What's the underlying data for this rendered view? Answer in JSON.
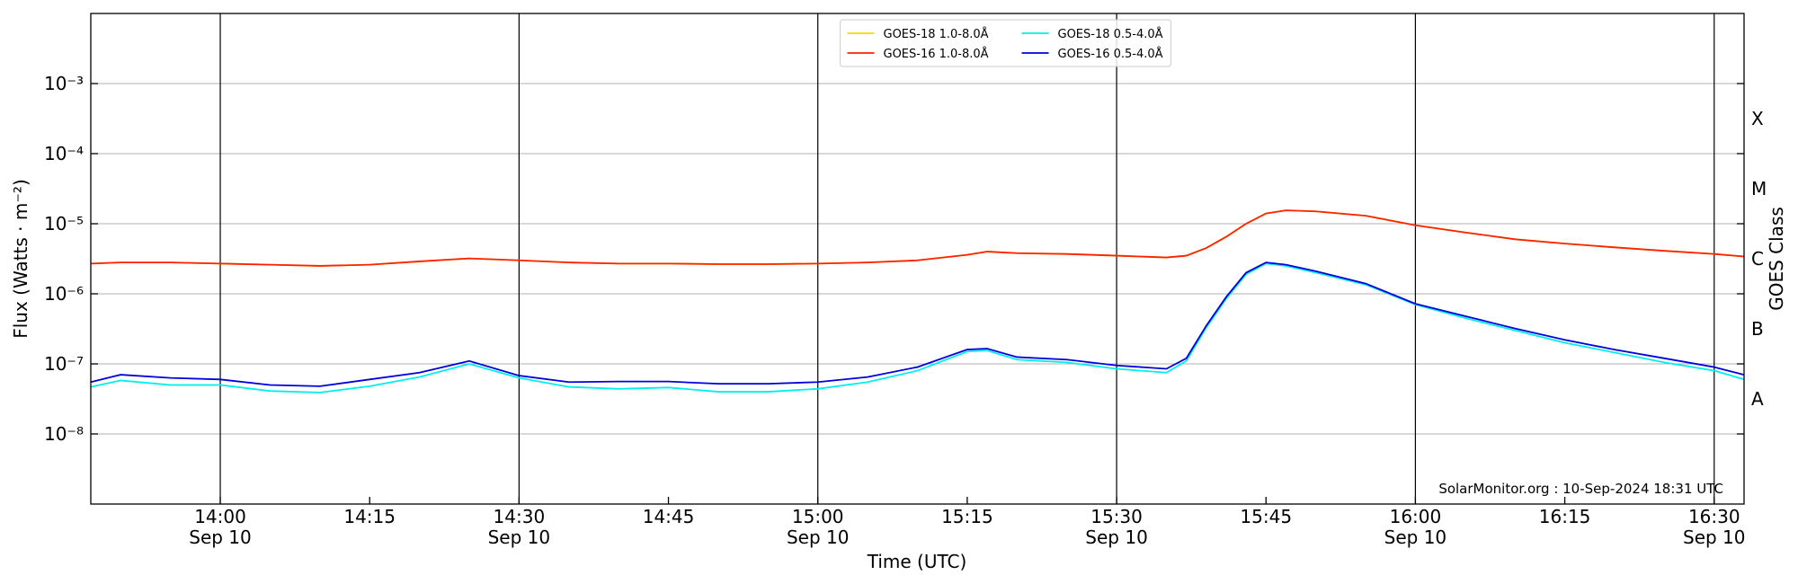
{
  "chart_data": {
    "type": "line",
    "xlabel": "Time (UTC)",
    "ylabel": "Flux (Watts · m⁻²)",
    "y2label": "GOES Class",
    "annotation": "SolarMonitor.org : 10-Sep-2024 18:31 UTC",
    "log_y": true,
    "grid": true,
    "legend": "upper center",
    "x": [
      "13:47",
      "13:50",
      "13:55",
      "14:00",
      "14:05",
      "14:10",
      "14:15",
      "14:20",
      "14:25",
      "14:30",
      "14:35",
      "14:40",
      "14:45",
      "14:50",
      "14:55",
      "15:00",
      "15:05",
      "15:10",
      "15:15",
      "15:17",
      "15:20",
      "15:25",
      "15:30",
      "15:35",
      "15:37",
      "15:39",
      "15:41",
      "15:43",
      "15:45",
      "15:47",
      "15:50",
      "15:55",
      "16:00",
      "16:05",
      "16:10",
      "16:15",
      "16:20",
      "16:25",
      "16:30",
      "16:33"
    ],
    "xlim": [
      "13:47",
      "16:33"
    ],
    "xticks": [
      {
        "value": "14:00",
        "label": "14:00",
        "date": "Sep 10"
      },
      "14:15",
      {
        "value": "14:30",
        "label": "14:30",
        "date": "Sep 10"
      },
      "14:45",
      {
        "value": "15:00",
        "label": "15:00",
        "date": "Sep 10"
      },
      "15:15",
      {
        "value": "15:30",
        "label": "15:30",
        "date": "Sep 10"
      },
      "15:45",
      {
        "value": "16:00",
        "label": "16:00",
        "date": "Sep 10"
      },
      "16:15",
      {
        "value": "16:30",
        "label": "16:30",
        "date": "Sep 10"
      }
    ],
    "ylim": [
      1e-09,
      0.01
    ],
    "yticks": [
      {
        "value": 1e-08,
        "label": "10⁻⁸"
      },
      {
        "value": 1e-07,
        "label": "10⁻⁷"
      },
      {
        "value": 1e-06,
        "label": "10⁻⁶"
      },
      {
        "value": 1e-05,
        "label": "10⁻⁵"
      },
      {
        "value": 0.0001,
        "label": "10⁻⁴"
      },
      {
        "value": 0.001,
        "label": "10⁻³"
      }
    ],
    "y2lim": [
      1e-09,
      0.01
    ],
    "y2ticks": [
      {
        "value": 3.162e-08,
        "label": "A"
      },
      {
        "value": 3.162e-07,
        "label": "B"
      },
      {
        "value": 3.162e-06,
        "label": "C"
      },
      {
        "value": 3.162e-05,
        "label": "M"
      },
      {
        "value": 0.0003162,
        "label": "X"
      }
    ],
    "series": [
      {
        "name": "GOES-18 1.0-8.0Å",
        "color": "#ffd700",
        "values": [
          2.7e-06,
          2.8e-06,
          2.8e-06,
          2.7e-06,
          2.6e-06,
          2.5e-06,
          2.6e-06,
          2.9e-06,
          3.2e-06,
          3e-06,
          2.8e-06,
          2.7e-06,
          2.7e-06,
          2.65e-06,
          2.65e-06,
          2.7e-06,
          2.8e-06,
          3e-06,
          3.6e-06,
          4e-06,
          3.8e-06,
          3.7e-06,
          3.5e-06,
          3.3e-06,
          3.5e-06,
          4.5e-06,
          6.5e-06,
          1e-05,
          1.4e-05,
          1.55e-05,
          1.5e-05,
          1.3e-05,
          9.5e-06,
          7.5e-06,
          6e-06,
          5.2e-06,
          4.6e-06,
          4.1e-06,
          3.7e-06,
          3.4e-06
        ]
      },
      {
        "name": "GOES-16 1.0-8.0Å",
        "color": "#ff2200",
        "values": [
          2.7e-06,
          2.8e-06,
          2.8e-06,
          2.7e-06,
          2.6e-06,
          2.5e-06,
          2.6e-06,
          2.9e-06,
          3.2e-06,
          3e-06,
          2.8e-06,
          2.7e-06,
          2.7e-06,
          2.65e-06,
          2.65e-06,
          2.7e-06,
          2.8e-06,
          3e-06,
          3.6e-06,
          4e-06,
          3.8e-06,
          3.7e-06,
          3.5e-06,
          3.3e-06,
          3.5e-06,
          4.5e-06,
          6.5e-06,
          1e-05,
          1.4e-05,
          1.55e-05,
          1.5e-05,
          1.3e-05,
          9.5e-06,
          7.5e-06,
          6e-06,
          5.2e-06,
          4.6e-06,
          4.1e-06,
          3.7e-06,
          3.4e-06
        ]
      },
      {
        "name": "GOES-18 0.5-4.0Å",
        "color": "#00eeee",
        "values": [
          4.7e-08,
          5.8e-08,
          5e-08,
          5e-08,
          4.1e-08,
          3.9e-08,
          4.8e-08,
          6.5e-08,
          1e-07,
          6.3e-08,
          4.7e-08,
          4.4e-08,
          4.6e-08,
          4e-08,
          4e-08,
          4.4e-08,
          5.5e-08,
          8e-08,
          1.5e-07,
          1.55e-07,
          1.15e-07,
          1.05e-07,
          8.5e-08,
          7.5e-08,
          1.1e-07,
          3.3e-07,
          8.5e-07,
          1.9e-06,
          2.7e-06,
          2.5e-06,
          2e-06,
          1.35e-06,
          7e-07,
          4.5e-07,
          3e-07,
          2e-07,
          1.45e-07,
          1.05e-07,
          8e-08,
          6e-08
        ]
      },
      {
        "name": "GOES-16 0.5-4.0Å",
        "color": "#0000dd",
        "values": [
          5.5e-08,
          7e-08,
          6.3e-08,
          6e-08,
          5e-08,
          4.8e-08,
          6e-08,
          7.5e-08,
          1.1e-07,
          6.8e-08,
          5.5e-08,
          5.6e-08,
          5.6e-08,
          5.2e-08,
          5.2e-08,
          5.5e-08,
          6.5e-08,
          9e-08,
          1.6e-07,
          1.65e-07,
          1.25e-07,
          1.15e-07,
          9.5e-08,
          8.5e-08,
          1.2e-07,
          3.5e-07,
          9e-07,
          2e-06,
          2.8e-06,
          2.6e-06,
          2.1e-06,
          1.4e-06,
          7.2e-07,
          4.8e-07,
          3.2e-07,
          2.2e-07,
          1.6e-07,
          1.2e-07,
          9e-08,
          7e-08
        ]
      }
    ]
  }
}
